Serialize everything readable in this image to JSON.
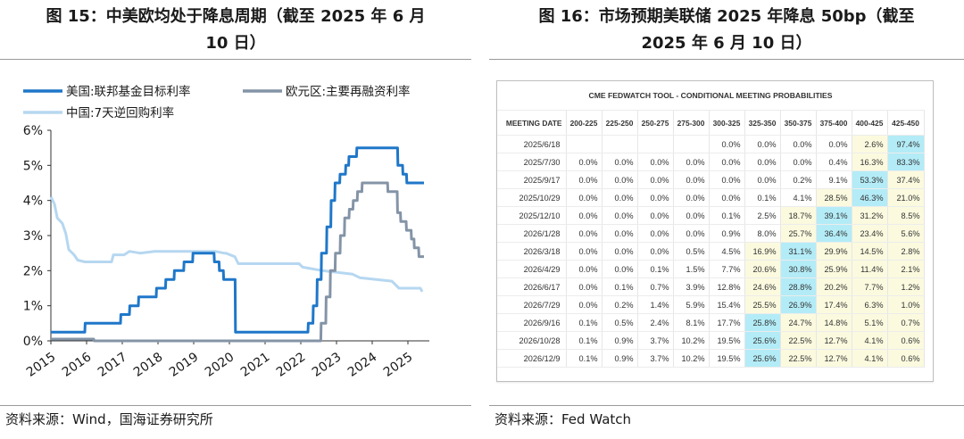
{
  "left": {
    "title_line1": "图 15：中美欧均处于降息周期（截至 2025 年 6 月",
    "title_line2": "10 日）",
    "source": "资料来源：Wind，国海证券研究所"
  },
  "right": {
    "title_line1": "图 16：市场预期美联储 2025 年降息 50bp（截至",
    "title_line2": "2025 年 6 月 10 日）",
    "source": "资料来源：Fed Watch"
  },
  "chart_data": [
    {
      "type": "line",
      "ylim": [
        0,
        6
      ],
      "yticks": [
        "0%",
        "1%",
        "2%",
        "3%",
        "4%",
        "5%",
        "6%"
      ],
      "xlim": [
        2015.0,
        2025.6
      ],
      "xticks": [
        "2015",
        "2016",
        "2017",
        "2018",
        "2019",
        "2020",
        "2021",
        "2022",
        "2023",
        "2024",
        "2025"
      ],
      "legend_placement": "top",
      "colors": {
        "us": "#1f77c9",
        "eu": "#8494a7",
        "cn": "#b6d7f0"
      },
      "series": [
        {
          "name": "美国:联邦基金目标利率",
          "points": [
            [
              2015.0,
              0.25
            ],
            [
              2015.95,
              0.25
            ],
            [
              2015.96,
              0.5
            ],
            [
              2016.95,
              0.5
            ],
            [
              2016.96,
              0.75
            ],
            [
              2017.2,
              0.75
            ],
            [
              2017.21,
              1.0
            ],
            [
              2017.45,
              1.0
            ],
            [
              2017.46,
              1.25
            ],
            [
              2017.95,
              1.25
            ],
            [
              2017.96,
              1.5
            ],
            [
              2018.21,
              1.5
            ],
            [
              2018.22,
              1.75
            ],
            [
              2018.45,
              1.75
            ],
            [
              2018.46,
              2.0
            ],
            [
              2018.72,
              2.0
            ],
            [
              2018.73,
              2.25
            ],
            [
              2018.97,
              2.25
            ],
            [
              2018.98,
              2.5
            ],
            [
              2019.57,
              2.5
            ],
            [
              2019.58,
              2.25
            ],
            [
              2019.71,
              2.25
            ],
            [
              2019.72,
              2.0
            ],
            [
              2019.83,
              2.0
            ],
            [
              2019.84,
              1.75
            ],
            [
              2020.16,
              1.75
            ],
            [
              2020.17,
              0.25
            ],
            [
              2022.2,
              0.25
            ],
            [
              2022.21,
              0.5
            ],
            [
              2022.34,
              0.5
            ],
            [
              2022.35,
              1.0
            ],
            [
              2022.45,
              1.0
            ],
            [
              2022.46,
              1.75
            ],
            [
              2022.57,
              1.75
            ],
            [
              2022.58,
              2.5
            ],
            [
              2022.72,
              2.5
            ],
            [
              2022.73,
              3.25
            ],
            [
              2022.84,
              3.25
            ],
            [
              2022.85,
              4.0
            ],
            [
              2022.95,
              4.0
            ],
            [
              2022.96,
              4.5
            ],
            [
              2023.09,
              4.5
            ],
            [
              2023.1,
              4.75
            ],
            [
              2023.25,
              4.75
            ],
            [
              2023.26,
              5.0
            ],
            [
              2023.34,
              5.0
            ],
            [
              2023.35,
              5.25
            ],
            [
              2023.56,
              5.25
            ],
            [
              2023.57,
              5.5
            ],
            [
              2024.71,
              5.5
            ],
            [
              2024.72,
              5.0
            ],
            [
              2024.85,
              5.0
            ],
            [
              2024.86,
              4.75
            ],
            [
              2024.96,
              4.75
            ],
            [
              2024.97,
              4.5
            ],
            [
              2025.45,
              4.5
            ]
          ]
        },
        {
          "name": "欧元区:主要再融资利率",
          "points": [
            [
              2015.0,
              0.05
            ],
            [
              2016.2,
              0.05
            ],
            [
              2016.21,
              0.0
            ],
            [
              2022.56,
              0.0
            ],
            [
              2022.57,
              0.5
            ],
            [
              2022.7,
              0.5
            ],
            [
              2022.71,
              1.25
            ],
            [
              2022.82,
              1.25
            ],
            [
              2022.83,
              2.0
            ],
            [
              2022.96,
              2.0
            ],
            [
              2022.97,
              2.5
            ],
            [
              2023.1,
              2.5
            ],
            [
              2023.11,
              3.0
            ],
            [
              2023.22,
              3.0
            ],
            [
              2023.23,
              3.5
            ],
            [
              2023.35,
              3.5
            ],
            [
              2023.36,
              3.75
            ],
            [
              2023.46,
              3.75
            ],
            [
              2023.47,
              4.0
            ],
            [
              2023.58,
              4.0
            ],
            [
              2023.59,
              4.25
            ],
            [
              2023.71,
              4.25
            ],
            [
              2023.72,
              4.5
            ],
            [
              2024.43,
              4.5
            ],
            [
              2024.44,
              4.25
            ],
            [
              2024.7,
              4.25
            ],
            [
              2024.71,
              3.65
            ],
            [
              2024.79,
              3.65
            ],
            [
              2024.8,
              3.4
            ],
            [
              2024.95,
              3.4
            ],
            [
              2024.96,
              3.15
            ],
            [
              2025.09,
              3.15
            ],
            [
              2025.1,
              2.9
            ],
            [
              2025.17,
              2.9
            ],
            [
              2025.18,
              2.65
            ],
            [
              2025.3,
              2.65
            ],
            [
              2025.31,
              2.4
            ],
            [
              2025.45,
              2.4
            ]
          ]
        },
        {
          "name": "中国:7天逆回购利率",
          "points": [
            [
              2015.0,
              4.1
            ],
            [
              2015.1,
              3.9
            ],
            [
              2015.18,
              3.5
            ],
            [
              2015.32,
              3.35
            ],
            [
              2015.42,
              3.05
            ],
            [
              2015.5,
              2.6
            ],
            [
              2015.65,
              2.45
            ],
            [
              2015.75,
              2.3
            ],
            [
              2015.95,
              2.25
            ],
            [
              2016.7,
              2.25
            ],
            [
              2016.75,
              2.45
            ],
            [
              2017.05,
              2.45
            ],
            [
              2017.2,
              2.55
            ],
            [
              2017.5,
              2.5
            ],
            [
              2017.9,
              2.55
            ],
            [
              2018.3,
              2.55
            ],
            [
              2018.6,
              2.55
            ],
            [
              2019.0,
              2.55
            ],
            [
              2019.6,
              2.55
            ],
            [
              2019.85,
              2.5
            ],
            [
              2019.9,
              2.5
            ],
            [
              2020.15,
              2.4
            ],
            [
              2020.25,
              2.2
            ],
            [
              2021.5,
              2.2
            ],
            [
              2021.95,
              2.2
            ],
            [
              2022.05,
              2.1
            ],
            [
              2022.6,
              2.0
            ],
            [
              2023.45,
              1.9
            ],
            [
              2023.65,
              1.8
            ],
            [
              2024.55,
              1.7
            ],
            [
              2024.75,
              1.5
            ],
            [
              2025.35,
              1.5
            ],
            [
              2025.4,
              1.4
            ]
          ]
        }
      ]
    },
    {
      "type": "table",
      "title": "CME FEDWATCH TOOL - CONDITIONAL MEETING PROBABILITIES",
      "columns": [
        "MEETING DATE",
        "200-225",
        "225-250",
        "250-275",
        "275-300",
        "300-325",
        "325-350",
        "350-375",
        "375-400",
        "400-425",
        "425-450"
      ],
      "rows": [
        {
          "date": "2025/6/18",
          "cells": [
            "",
            "",
            "",
            "",
            "0.0%",
            "0.0%",
            "0.0%",
            "0.0%",
            "2.6%",
            "97.4%"
          ],
          "cyan": [
            9
          ],
          "yellow": [
            8
          ]
        },
        {
          "date": "2025/7/30",
          "cells": [
            "0.0%",
            "0.0%",
            "0.0%",
            "0.0%",
            "0.0%",
            "0.0%",
            "0.0%",
            "0.4%",
            "16.3%",
            "83.3%"
          ],
          "cyan": [
            9
          ],
          "yellow": [
            8
          ]
        },
        {
          "date": "2025/9/17",
          "cells": [
            "0.0%",
            "0.0%",
            "0.0%",
            "0.0%",
            "0.0%",
            "0.0%",
            "0.2%",
            "9.1%",
            "53.3%",
            "37.4%"
          ],
          "cyan": [
            8
          ],
          "yellow": [
            9
          ]
        },
        {
          "date": "2025/10/29",
          "cells": [
            "0.0%",
            "0.0%",
            "0.0%",
            "0.0%",
            "0.0%",
            "0.1%",
            "4.1%",
            "28.5%",
            "46.3%",
            "21.0%"
          ],
          "cyan": [
            8
          ],
          "yellow": [
            7,
            9
          ]
        },
        {
          "date": "2025/12/10",
          "cells": [
            "0.0%",
            "0.0%",
            "0.0%",
            "0.0%",
            "0.1%",
            "2.5%",
            "18.7%",
            "39.1%",
            "31.2%",
            "8.5%"
          ],
          "cyan": [
            7
          ],
          "yellow": [
            6,
            8,
            9
          ]
        },
        {
          "date": "2026/1/28",
          "cells": [
            "0.0%",
            "0.0%",
            "0.0%",
            "0.0%",
            "0.9%",
            "8.0%",
            "25.7%",
            "36.4%",
            "23.4%",
            "5.6%"
          ],
          "cyan": [
            7
          ],
          "yellow": [
            6,
            8,
            9
          ]
        },
        {
          "date": "2026/3/18",
          "cells": [
            "0.0%",
            "0.0%",
            "0.0%",
            "0.5%",
            "4.5%",
            "16.9%",
            "31.1%",
            "29.9%",
            "14.5%",
            "2.8%"
          ],
          "cyan": [
            6
          ],
          "yellow": [
            5,
            7,
            8,
            9
          ]
        },
        {
          "date": "2026/4/29",
          "cells": [
            "0.0%",
            "0.0%",
            "0.1%",
            "1.5%",
            "7.7%",
            "20.6%",
            "30.8%",
            "25.9%",
            "11.4%",
            "2.1%"
          ],
          "cyan": [
            6
          ],
          "yellow": [
            5,
            7,
            8,
            9
          ]
        },
        {
          "date": "2026/6/17",
          "cells": [
            "0.0%",
            "0.1%",
            "0.7%",
            "3.9%",
            "12.8%",
            "24.6%",
            "28.8%",
            "20.2%",
            "7.7%",
            "1.2%"
          ],
          "cyan": [
            6
          ],
          "yellow": [
            5,
            7,
            8,
            9
          ]
        },
        {
          "date": "2026/7/29",
          "cells": [
            "0.0%",
            "0.2%",
            "1.4%",
            "5.9%",
            "15.4%",
            "25.5%",
            "26.9%",
            "17.4%",
            "6.3%",
            "1.0%"
          ],
          "cyan": [
            6
          ],
          "yellow": [
            5,
            7,
            8,
            9
          ]
        },
        {
          "date": "2026/9/16",
          "cells": [
            "0.1%",
            "0.5%",
            "2.4%",
            "8.1%",
            "17.7%",
            "25.8%",
            "24.7%",
            "14.8%",
            "5.1%",
            "0.7%"
          ],
          "cyan": [
            5
          ],
          "yellow": [
            6,
            7,
            8,
            9
          ]
        },
        {
          "date": "2026/10/28",
          "cells": [
            "0.1%",
            "0.9%",
            "3.7%",
            "10.2%",
            "19.5%",
            "25.6%",
            "22.5%",
            "12.7%",
            "4.1%",
            "0.6%"
          ],
          "cyan": [
            5
          ],
          "yellow": [
            6,
            7,
            8,
            9
          ]
        },
        {
          "date": "2026/12/9",
          "cells": [
            "0.1%",
            "0.9%",
            "3.7%",
            "10.2%",
            "19.5%",
            "25.6%",
            "22.5%",
            "12.7%",
            "4.1%",
            "0.6%"
          ],
          "cyan": [
            5
          ],
          "yellow": [
            6,
            7,
            8,
            9
          ]
        }
      ]
    }
  ]
}
